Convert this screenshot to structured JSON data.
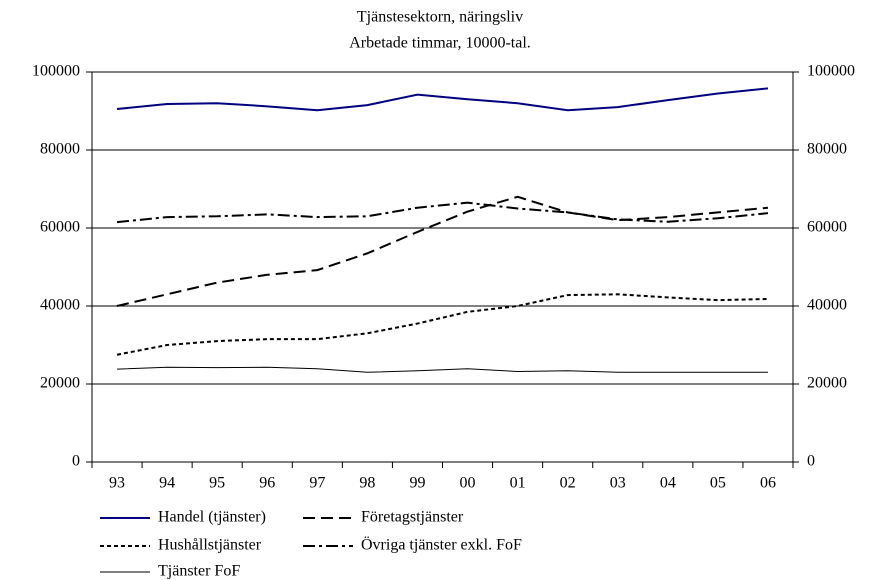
{
  "chart_data": {
    "type": "line",
    "title": "Tjänstesektorn, näringsliv",
    "subtitle": "Arbetade timmar, 10000-tal.",
    "categories": [
      "93",
      "94",
      "95",
      "96",
      "97",
      "98",
      "99",
      "00",
      "01",
      "02",
      "03",
      "04",
      "05",
      "06"
    ],
    "series": [
      {
        "name": "Handel (tjänster)",
        "color": "#000080",
        "dash": "solid",
        "line_width": 2,
        "values": [
          90500,
          91800,
          92000,
          91200,
          90200,
          91500,
          94200,
          93000,
          92000,
          90200,
          91000,
          92800,
          94500,
          95800
        ]
      },
      {
        "name": "Företagstjänster",
        "color": "#000000",
        "dash": "dashed",
        "line_width": 2,
        "values": [
          40000,
          43000,
          46000,
          48000,
          49200,
          53500,
          59000,
          64200,
          68000,
          64000,
          62000,
          62800,
          64000,
          65200
        ]
      },
      {
        "name": "Hushållstjänster",
        "color": "#000000",
        "dash": "dotted",
        "line_width": 2,
        "values": [
          27500,
          30000,
          31000,
          31500,
          31500,
          33000,
          35500,
          38500,
          40000,
          42800,
          43000,
          42200,
          41500,
          41800
        ]
      },
      {
        "name": "Övriga tjänster exkl. FoF",
        "color": "#000000",
        "dash": "dashdot",
        "line_width": 2,
        "values": [
          61500,
          62800,
          63000,
          63500,
          62800,
          63000,
          65200,
          66500,
          65000,
          64000,
          62200,
          61600,
          62500,
          63800
        ]
      },
      {
        "name": "Tjänster FoF",
        "color": "#000000",
        "dash": "solid",
        "line_width": 1,
        "values": [
          23800,
          24300,
          24200,
          24300,
          23900,
          23000,
          23400,
          23900,
          23200,
          23400,
          23000,
          23000,
          23000,
          23000
        ]
      }
    ],
    "ylim": [
      0,
      100000
    ],
    "yticks": [
      0,
      20000,
      40000,
      60000,
      80000,
      100000
    ],
    "y2lim": [
      0,
      100000
    ],
    "y2ticks": [
      0,
      20000,
      40000,
      60000,
      80000,
      100000
    ],
    "grid": true
  }
}
